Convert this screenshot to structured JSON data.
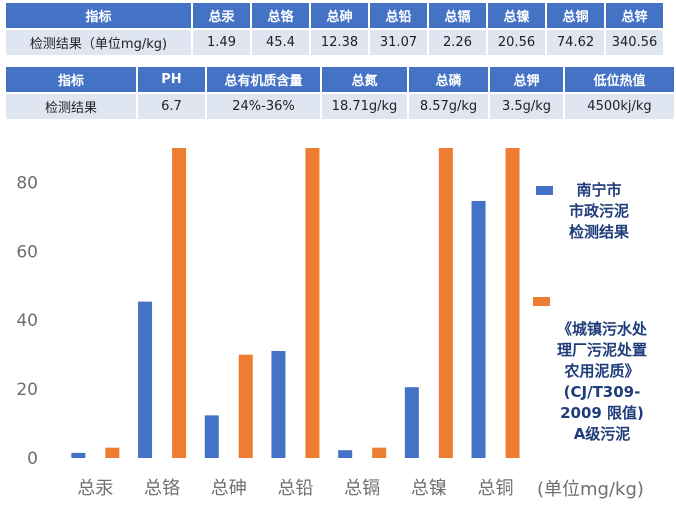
{
  "table1": {
    "headers": [
      "指标",
      "总汞",
      "总铬",
      "总砷",
      "总铅",
      "总镉",
      "总镍",
      "总铜",
      "总锌"
    ],
    "row": [
      "检测结果（单位mg/kg)",
      "1.49",
      "45.4",
      "12.38",
      "31.07",
      "2.26",
      "20.56",
      "74.62",
      "340.56"
    ]
  },
  "table2": {
    "headers": [
      "指标",
      "PH",
      "总有机质含量",
      "总氮",
      "总磷",
      "总钾",
      "低位热值"
    ],
    "row": [
      "检测结果",
      "6.7",
      "24%-36%",
      "18.71g/kg",
      "8.57g/kg",
      "3.5g/kg",
      "4500kj/kg"
    ]
  },
  "chart_data": {
    "type": "bar",
    "categories": [
      "总汞",
      "总铬",
      "总砷",
      "总铅",
      "总镉",
      "总镍",
      "总铜"
    ],
    "series": [
      {
        "name": "南宁市市政污泥检测结果",
        "color": "#4472c4",
        "values": [
          1.49,
          45.4,
          12.38,
          31.07,
          2.26,
          20.56,
          74.62
        ]
      },
      {
        "name": "《城镇污水处理厂污泥处置农用泥质》(CJ/T309-2009 限值) A级污泥",
        "color": "#ed7d31",
        "values": [
          3,
          90,
          30,
          90,
          3,
          90,
          90
        ]
      }
    ],
    "ylim": [
      0,
      90
    ],
    "yticks": [
      0,
      20,
      40,
      60,
      80
    ],
    "unit_label": "(单位mg/kg)",
    "legend": {
      "series1_lines": [
        "南宁市",
        "市政污泥",
        "检测结果"
      ],
      "series2_lines": [
        "《城镇污水处",
        "理厂污泥处置",
        "农用泥质》",
        "(CJ/T309-",
        "2009 限值)",
        "A级污泥"
      ]
    }
  }
}
